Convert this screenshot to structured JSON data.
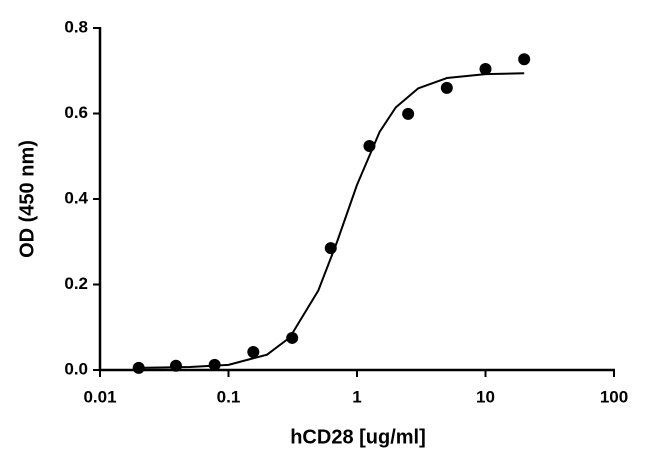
{
  "chart_data": {
    "type": "scatter",
    "xlabel": "hCD28 [ug/ml]",
    "ylabel": "OD (450 nm)",
    "xscale": "log",
    "xlim": [
      0.01,
      100
    ],
    "xticks": [
      0.01,
      0.1,
      1,
      10,
      100
    ],
    "ylim": [
      0,
      0.8
    ],
    "yticks": [
      {
        "value": 0,
        "label": "0.0"
      },
      0.2,
      0.4,
      0.6,
      0.8
    ],
    "grid": false,
    "series": [
      {
        "type": "scatter",
        "color": "#000000",
        "x": [
          0.02,
          0.039,
          0.078,
          0.156,
          0.313,
          0.625,
          1.25,
          2.5,
          5,
          10,
          20
        ],
        "values": [
          0.005,
          0.01,
          0.012,
          0.042,
          0.075,
          0.285,
          0.524,
          0.599,
          0.66,
          0.704,
          0.727
        ]
      },
      {
        "type": "line",
        "color": "#000000",
        "x": [
          0.02,
          0.05,
          0.1,
          0.2,
          0.3,
          0.5,
          0.7,
          1,
          1.5,
          2,
          3,
          5,
          10,
          20
        ],
        "values": [
          0.005,
          0.007,
          0.012,
          0.036,
          0.076,
          0.186,
          0.3,
          0.433,
          0.557,
          0.614,
          0.659,
          0.683,
          0.692,
          0.694
        ]
      }
    ]
  }
}
